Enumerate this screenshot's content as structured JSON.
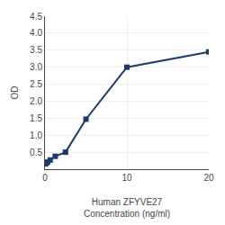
{
  "chart_data": {
    "type": "line",
    "xlabel": "Human ZFYVE27\nConcentration (ng/ml)",
    "ylabel": "OD",
    "x": [
      0.0,
      0.156,
      0.313,
      0.625,
      1.25,
      2.5,
      5,
      10,
      20
    ],
    "values": [
      0.155,
      0.175,
      0.21,
      0.27,
      0.38,
      0.5,
      1.47,
      3.0,
      3.45
    ],
    "color": "#1a3a6b",
    "marker": "square",
    "xlim": [
      0,
      20
    ],
    "ylim": [
      0,
      4.5
    ],
    "xticks": [
      0,
      10,
      20
    ],
    "yticks": [
      0.5,
      {
        "value": 1,
        "label": "1.0"
      },
      1.5,
      {
        "value": 2,
        "label": "2.0"
      },
      2.5,
      {
        "value": 3,
        "label": "3.0"
      },
      3.5,
      {
        "value": 4,
        "label": "4.0"
      },
      4.5
    ],
    "grid": true
  }
}
